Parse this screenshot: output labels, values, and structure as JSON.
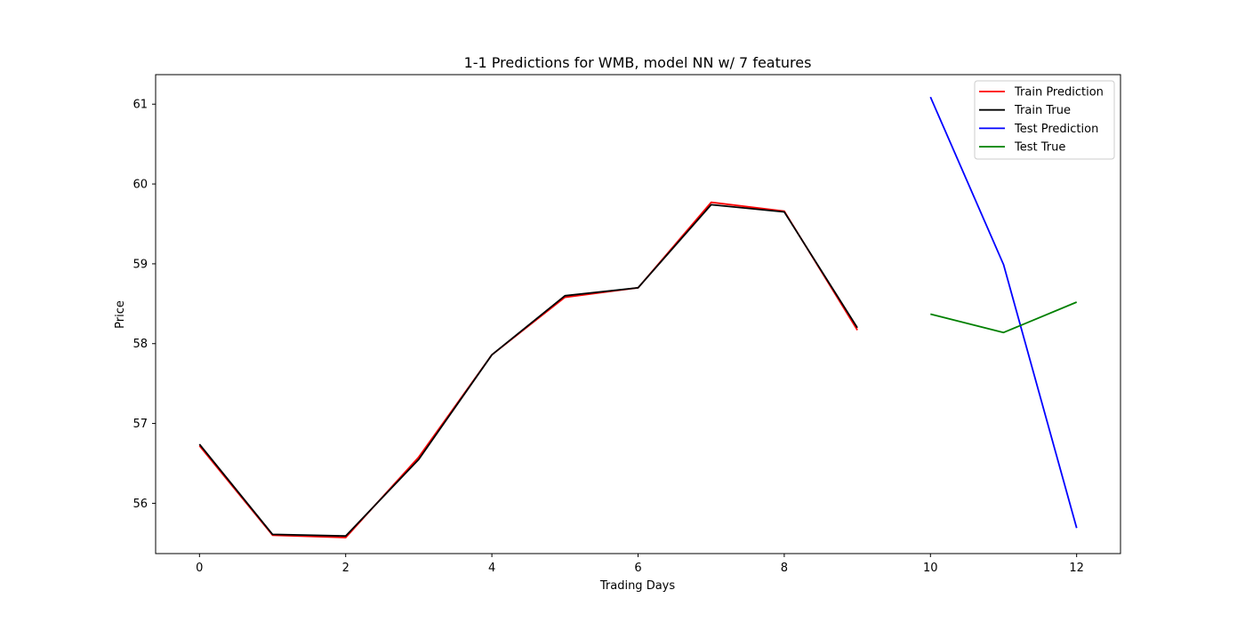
{
  "chart_data": {
    "type": "line",
    "title": "1-1 Predictions for WMB, model NN w/ 7 features",
    "xlabel": "Trading Days",
    "ylabel": "Price",
    "xlim": [
      -0.6,
      12.6
    ],
    "ylim": [
      55.37,
      61.37
    ],
    "xticks": [
      0,
      2,
      4,
      6,
      8,
      10,
      12
    ],
    "yticks": [
      56,
      57,
      58,
      59,
      60,
      61
    ],
    "grid": false,
    "legend_position": "top-right",
    "series": [
      {
        "name": "Train Prediction",
        "color": "#ff0000",
        "x": [
          0,
          1,
          2,
          3,
          4,
          5,
          6,
          7,
          8,
          9
        ],
        "y": [
          56.72,
          55.6,
          55.57,
          56.58,
          57.86,
          58.58,
          58.7,
          59.77,
          59.66,
          58.17
        ]
      },
      {
        "name": "Train True",
        "color": "#000000",
        "x": [
          0,
          1,
          2,
          3,
          4,
          5,
          6,
          7,
          8,
          9
        ],
        "y": [
          56.74,
          55.61,
          55.59,
          56.55,
          57.86,
          58.6,
          58.7,
          59.74,
          59.65,
          58.2
        ]
      },
      {
        "name": "Test Prediction",
        "color": "#0000ff",
        "x": [
          10,
          11,
          12
        ],
        "y": [
          61.09,
          58.99,
          55.69
        ]
      },
      {
        "name": "Test True",
        "color": "#008000",
        "x": [
          10,
          11,
          12
        ],
        "y": [
          58.37,
          58.14,
          58.52
        ]
      }
    ]
  }
}
